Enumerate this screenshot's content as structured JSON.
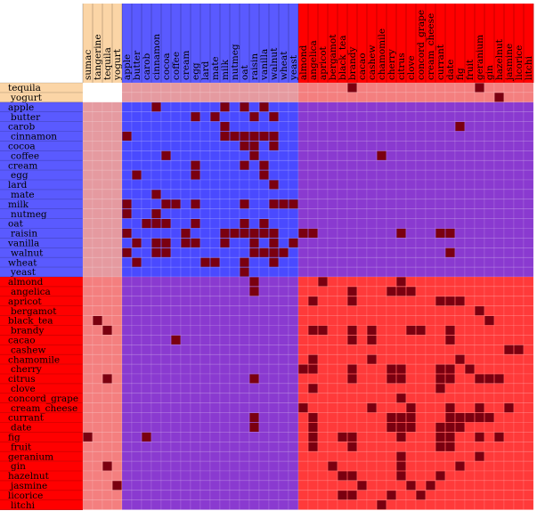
{
  "chart_data": {
    "type": "heatmap",
    "title": "",
    "groups": [
      {
        "name": "G1",
        "color": "#fbd5a6",
        "labels": [
          "sumac",
          "tangerine",
          "tequila",
          "yogurt"
        ]
      },
      {
        "name": "G2",
        "color": "#5a5aff",
        "labels": [
          "apple",
          "butter",
          "carob",
          "cinnamon",
          "cocoa",
          "coffee",
          "cream",
          "egg",
          "lard",
          "mate",
          "milk",
          "nutmeg",
          "oat",
          "raisin",
          "vanilla",
          "walnut",
          "wheat",
          "yeast"
        ]
      },
      {
        "name": "G3",
        "color": "#ff0000",
        "labels": [
          "almond",
          "angelica",
          "apricot",
          "bergamot",
          "black_tea",
          "brandy",
          "cacao",
          "cashew",
          "chamomile",
          "cherry",
          "citrus",
          "clove",
          "concord_grape",
          "cream_cheese",
          "currant",
          "date",
          "fig",
          "fruit",
          "geranium",
          "gin",
          "hazelnut",
          "jasmine",
          "licorice",
          "litchi"
        ]
      }
    ],
    "column_group_label_counts": [
      4,
      18,
      24
    ],
    "row_labels": [
      "tequila",
      "yogurt",
      "apple",
      "butter",
      "carob",
      "cinnamon",
      "cocoa",
      "coffee",
      "cream",
      "egg",
      "lard",
      "mate",
      "milk",
      "nutmeg",
      "oat",
      "raisin",
      "vanilla",
      "walnut",
      "wheat",
      "yeast",
      "almond",
      "angelica",
      "apricot",
      "bergamot",
      "black_tea",
      "brandy",
      "cacao",
      "cashew",
      "chamomile",
      "cherry",
      "citrus",
      "clove",
      "concord_grape",
      "cream_cheese",
      "currant",
      "date",
      "fig",
      "fruit",
      "geranium",
      "gin",
      "hazelnut",
      "jasmine",
      "licorice",
      "litchi"
    ],
    "row_groups": [
      0,
      0,
      1,
      1,
      1,
      1,
      1,
      1,
      1,
      1,
      1,
      1,
      1,
      1,
      1,
      1,
      1,
      1,
      1,
      1,
      2,
      2,
      2,
      2,
      2,
      2,
      2,
      2,
      2,
      2,
      2,
      2,
      2,
      2,
      2,
      2,
      2,
      2,
      2,
      2,
      2,
      2,
      2,
      2
    ],
    "col_labels": [
      "sumac",
      "tangerine",
      "tequila",
      "yogurt",
      "apple",
      "butter",
      "carob",
      "cinnamon",
      "cocoa",
      "coffee",
      "cream",
      "egg",
      "lard",
      "mate",
      "milk",
      "nutmeg",
      "oat",
      "raisin",
      "vanilla",
      "walnut",
      "wheat",
      "yeast",
      "almond",
      "angelica",
      "apricot",
      "bergamot",
      "black_tea",
      "brandy",
      "cacao",
      "cashew",
      "chamomile",
      "cherry",
      "citrus",
      "clove",
      "concord_grape",
      "cream_cheese",
      "currant",
      "date",
      "fig",
      "fruit",
      "geranium",
      "gin",
      "hazelnut",
      "jasmine",
      "licorice",
      "litchi"
    ],
    "col_groups": [
      0,
      0,
      0,
      0,
      1,
      1,
      1,
      1,
      1,
      1,
      1,
      1,
      1,
      1,
      1,
      1,
      1,
      1,
      1,
      1,
      1,
      1,
      2,
      2,
      2,
      2,
      2,
      2,
      2,
      2,
      2,
      2,
      2,
      2,
      2,
      2,
      2,
      2,
      2,
      2,
      2,
      2,
      2,
      2,
      2,
      2
    ],
    "block_colors": {
      "same_group": "G1-G1 #ffffff, G2-G2 #4040ff, G3-G3 #ff3a3a",
      "cross": "G1-G2 #e59aa0, G1-G3 #f47f7f, G2-G3 #8a3ad0"
    },
    "marked_color": "#7a0010",
    "marked_cells": [
      [
        0,
        27
      ],
      [
        0,
        40
      ],
      [
        1,
        42
      ],
      [
        2,
        7
      ],
      [
        2,
        14
      ],
      [
        2,
        16
      ],
      [
        2,
        18
      ],
      [
        3,
        11
      ],
      [
        3,
        13
      ],
      [
        3,
        17
      ],
      [
        3,
        19
      ],
      [
        4,
        14
      ],
      [
        4,
        38
      ],
      [
        5,
        4
      ],
      [
        5,
        14
      ],
      [
        5,
        15
      ],
      [
        5,
        16
      ],
      [
        5,
        17
      ],
      [
        5,
        18
      ],
      [
        5,
        19
      ],
      [
        6,
        16
      ],
      [
        6,
        17
      ],
      [
        6,
        19
      ],
      [
        7,
        8
      ],
      [
        7,
        17
      ],
      [
        7,
        30
      ],
      [
        8,
        11
      ],
      [
        8,
        16
      ],
      [
        8,
        18
      ],
      [
        9,
        5
      ],
      [
        9,
        11
      ],
      [
        9,
        18
      ],
      [
        10,
        19
      ],
      [
        11,
        7
      ],
      [
        12,
        4
      ],
      [
        12,
        8
      ],
      [
        12,
        9
      ],
      [
        12,
        11
      ],
      [
        12,
        16
      ],
      [
        12,
        19
      ],
      [
        12,
        20
      ],
      [
        12,
        21
      ],
      [
        13,
        4
      ],
      [
        13,
        7
      ],
      [
        14,
        6
      ],
      [
        14,
        7
      ],
      [
        14,
        8
      ],
      [
        14,
        11
      ],
      [
        14,
        16
      ],
      [
        14,
        18
      ],
      [
        15,
        4
      ],
      [
        15,
        10
      ],
      [
        15,
        14
      ],
      [
        15,
        15
      ],
      [
        15,
        16
      ],
      [
        15,
        17
      ],
      [
        15,
        18
      ],
      [
        15,
        19
      ],
      [
        15,
        22
      ],
      [
        15,
        23
      ],
      [
        15,
        32
      ],
      [
        15,
        36
      ],
      [
        15,
        37
      ],
      [
        16,
        5
      ],
      [
        16,
        7
      ],
      [
        16,
        8
      ],
      [
        16,
        10
      ],
      [
        16,
        11
      ],
      [
        16,
        14
      ],
      [
        16,
        17
      ],
      [
        16,
        19
      ],
      [
        16,
        21
      ],
      [
        17,
        4
      ],
      [
        17,
        7
      ],
      [
        17,
        8
      ],
      [
        17,
        17
      ],
      [
        17,
        18
      ],
      [
        17,
        19
      ],
      [
        17,
        20
      ],
      [
        17,
        37
      ],
      [
        18,
        5
      ],
      [
        18,
        12
      ],
      [
        18,
        13
      ],
      [
        18,
        16
      ],
      [
        18,
        19
      ],
      [
        19,
        16
      ],
      [
        20,
        17
      ],
      [
        20,
        24
      ],
      [
        20,
        32
      ],
      [
        21,
        17
      ],
      [
        21,
        27
      ],
      [
        21,
        31
      ],
      [
        21,
        32
      ],
      [
        21,
        33
      ],
      [
        22,
        23
      ],
      [
        22,
        27
      ],
      [
        22,
        36
      ],
      [
        22,
        37
      ],
      [
        22,
        38
      ],
      [
        23,
        40
      ],
      [
        24,
        1
      ],
      [
        24,
        41
      ],
      [
        25,
        2
      ],
      [
        25,
        23
      ],
      [
        25,
        24
      ],
      [
        25,
        27
      ],
      [
        25,
        29
      ],
      [
        25,
        33
      ],
      [
        25,
        34
      ],
      [
        25,
        37
      ],
      [
        26,
        9
      ],
      [
        26,
        27
      ],
      [
        26,
        29
      ],
      [
        26,
        37
      ],
      [
        27,
        43
      ],
      [
        27,
        44
      ],
      [
        28,
        23
      ],
      [
        28,
        29
      ],
      [
        28,
        38
      ],
      [
        29,
        22
      ],
      [
        29,
        23
      ],
      [
        29,
        27
      ],
      [
        29,
        31
      ],
      [
        29,
        32
      ],
      [
        29,
        36
      ],
      [
        29,
        37
      ],
      [
        29,
        39
      ],
      [
        30,
        2
      ],
      [
        30,
        17
      ],
      [
        30,
        27
      ],
      [
        30,
        31
      ],
      [
        30,
        32
      ],
      [
        30,
        36
      ],
      [
        30,
        37
      ],
      [
        30,
        40
      ],
      [
        30,
        41
      ],
      [
        30,
        42
      ],
      [
        31,
        23
      ],
      [
        31,
        36
      ],
      [
        32,
        32
      ],
      [
        33,
        22
      ],
      [
        33,
        29
      ],
      [
        33,
        33
      ],
      [
        33,
        37
      ],
      [
        33,
        40
      ],
      [
        33,
        43
      ],
      [
        34,
        17
      ],
      [
        34,
        23
      ],
      [
        34,
        31
      ],
      [
        34,
        32
      ],
      [
        34,
        33
      ],
      [
        34,
        37
      ],
      [
        34,
        38
      ],
      [
        34,
        39
      ],
      [
        34,
        40
      ],
      [
        34,
        41
      ],
      [
        35,
        17
      ],
      [
        35,
        23
      ],
      [
        35,
        31
      ],
      [
        35,
        32
      ],
      [
        35,
        33
      ],
      [
        35,
        36
      ],
      [
        35,
        37
      ],
      [
        35,
        38
      ],
      [
        36,
        0
      ],
      [
        36,
        6
      ],
      [
        36,
        23
      ],
      [
        36,
        26
      ],
      [
        36,
        27
      ],
      [
        36,
        32
      ],
      [
        36,
        36
      ],
      [
        36,
        37
      ],
      [
        36,
        40
      ],
      [
        36,
        42
      ],
      [
        37,
        23
      ],
      [
        37,
        27
      ],
      [
        37,
        36
      ],
      [
        37,
        37
      ],
      [
        38,
        32
      ],
      [
        38,
        40
      ],
      [
        39,
        2
      ],
      [
        39,
        25
      ],
      [
        39,
        32
      ],
      [
        39,
        38
      ],
      [
        40,
        26
      ],
      [
        40,
        27
      ],
      [
        40,
        32
      ],
      [
        40,
        36
      ],
      [
        41,
        3
      ],
      [
        41,
        28
      ],
      [
        41,
        33
      ],
      [
        41,
        35
      ],
      [
        42,
        26
      ],
      [
        42,
        27
      ],
      [
        42,
        31
      ],
      [
        42,
        34
      ],
      [
        43,
        30
      ]
    ]
  }
}
